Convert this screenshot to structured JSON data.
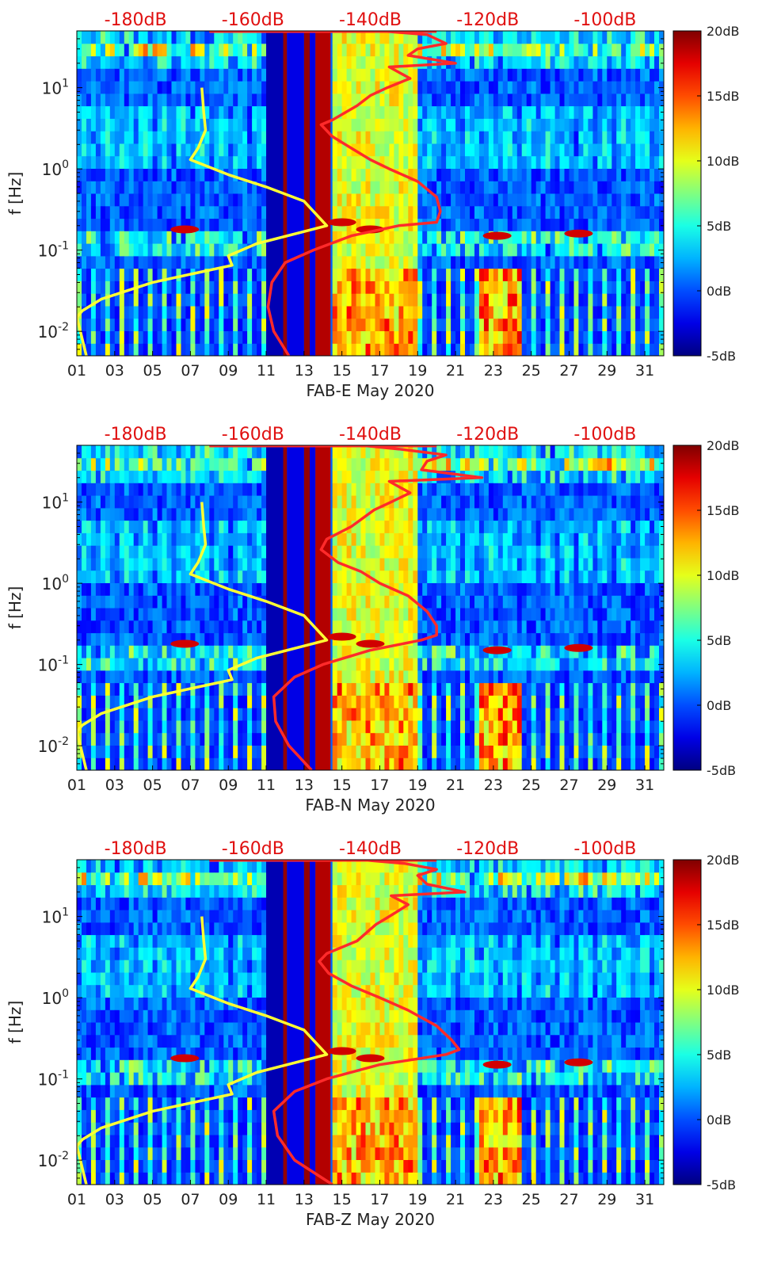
{
  "chart_data": [
    {
      "type": "heatmap",
      "xlabel": "FAB-E May 2020",
      "ylabel": "f [Hz]",
      "x_ticks": [
        "01",
        "03",
        "05",
        "07",
        "09",
        "11",
        "13",
        "15",
        "17",
        "19",
        "21",
        "23",
        "25",
        "27",
        "29",
        "31"
      ],
      "xlim": [
        1,
        32
      ],
      "ylim": [
        0.005,
        50
      ],
      "y_scale": "log",
      "y_ticks": [
        {
          "value": 0.01,
          "base": "10",
          "exp": "-2"
        },
        {
          "value": 0.1,
          "base": "10",
          "exp": "-1"
        },
        {
          "value": 1,
          "base": "10",
          "exp": "0"
        },
        {
          "value": 10,
          "base": "10",
          "exp": "1"
        }
      ],
      "top_axis_labels": [
        "-180dB",
        "-160dB",
        "-140dB",
        "-120dB",
        "-100dB"
      ],
      "top_axis_range_db": [
        -190,
        -90
      ],
      "colorbar": {
        "labels": [
          "-5dB",
          "0dB",
          "5dB",
          "10dB",
          "15dB",
          "20dB"
        ],
        "range": [
          -5,
          20
        ],
        "colormap": "jet"
      },
      "series": [
        {
          "color": "#ffff33",
          "x_units": "days",
          "points": [
            [
              7.6,
              10
            ],
            [
              7.7,
              5
            ],
            [
              7.8,
              3
            ],
            [
              7.4,
              1.8
            ],
            [
              7,
              1.3
            ],
            [
              9,
              0.85
            ],
            [
              11,
              0.6
            ],
            [
              13,
              0.4
            ],
            [
              14.2,
              0.2
            ],
            [
              10.5,
              0.12
            ],
            [
              9,
              0.085
            ],
            [
              9.2,
              0.065
            ],
            [
              5,
              0.04
            ],
            [
              2.3,
              0.025
            ],
            [
              1.3,
              0.018
            ],
            [
              1,
              0.015
            ],
            [
              1.5,
              0.005
            ]
          ]
        },
        {
          "color": "#ff2a2a",
          "x_units": "days",
          "points": [
            [
              12.2,
              0.005
            ],
            [
              11.4,
              0.01
            ],
            [
              11.1,
              0.02
            ],
            [
              11.3,
              0.04
            ],
            [
              12,
              0.07
            ],
            [
              13.5,
              0.1
            ],
            [
              15.5,
              0.15
            ],
            [
              18,
              0.2
            ],
            [
              20,
              0.22
            ],
            [
              20.2,
              0.3
            ],
            [
              20,
              0.45
            ],
            [
              19,
              0.7
            ],
            [
              17.5,
              1
            ],
            [
              16.5,
              1.3
            ],
            [
              15.5,
              1.8
            ],
            [
              14.5,
              2.5
            ],
            [
              13.9,
              3.5
            ],
            [
              14.5,
              4
            ],
            [
              15.8,
              6
            ],
            [
              16.5,
              8
            ],
            [
              17.4,
              10
            ],
            [
              18.6,
              13
            ],
            [
              17.5,
              18
            ],
            [
              21,
              20
            ],
            [
              18.5,
              25
            ],
            [
              19,
              30
            ],
            [
              20.5,
              35
            ],
            [
              19.5,
              45
            ],
            [
              17,
              50
            ]
          ]
        }
      ]
    },
    {
      "type": "heatmap",
      "xlabel": "FAB-N May 2020",
      "ylabel": "f [Hz]",
      "x_ticks": [
        "01",
        "03",
        "05",
        "07",
        "09",
        "11",
        "13",
        "15",
        "17",
        "19",
        "21",
        "23",
        "25",
        "27",
        "29",
        "31"
      ],
      "xlim": [
        1,
        32
      ],
      "ylim": [
        0.005,
        50
      ],
      "y_scale": "log",
      "y_ticks": [
        {
          "value": 0.01,
          "base": "10",
          "exp": "-2"
        },
        {
          "value": 0.1,
          "base": "10",
          "exp": "-1"
        },
        {
          "value": 1,
          "base": "10",
          "exp": "0"
        },
        {
          "value": 10,
          "base": "10",
          "exp": "1"
        }
      ],
      "top_axis_labels": [
        "-180dB",
        "-160dB",
        "-140dB",
        "-120dB",
        "-100dB"
      ],
      "top_axis_range_db": [
        -190,
        -90
      ],
      "colorbar": {
        "labels": [
          "-5dB",
          "0dB",
          "5dB",
          "10dB",
          "15dB",
          "20dB"
        ],
        "range": [
          -5,
          20
        ],
        "colormap": "jet"
      },
      "series": [
        {
          "color": "#ffff33",
          "x_units": "days",
          "points": [
            [
              7.6,
              10
            ],
            [
              7.7,
              5
            ],
            [
              7.8,
              3
            ],
            [
              7.4,
              1.8
            ],
            [
              7,
              1.3
            ],
            [
              9,
              0.85
            ],
            [
              11,
              0.6
            ],
            [
              13,
              0.4
            ],
            [
              14.2,
              0.2
            ],
            [
              10.5,
              0.12
            ],
            [
              9,
              0.085
            ],
            [
              9.2,
              0.065
            ],
            [
              5,
              0.04
            ],
            [
              2.3,
              0.025
            ],
            [
              1.3,
              0.018
            ],
            [
              1,
              0.015
            ],
            [
              1.5,
              0.005
            ]
          ]
        },
        {
          "color": "#ff2a2a",
          "x_units": "days",
          "points": [
            [
              13.4,
              0.005
            ],
            [
              12.2,
              0.01
            ],
            [
              11.5,
              0.02
            ],
            [
              11.4,
              0.04
            ],
            [
              12.5,
              0.07
            ],
            [
              14,
              0.1
            ],
            [
              16.5,
              0.15
            ],
            [
              19.2,
              0.2
            ],
            [
              20,
              0.23
            ],
            [
              20,
              0.3
            ],
            [
              19.5,
              0.45
            ],
            [
              18.5,
              0.7
            ],
            [
              17,
              1
            ],
            [
              16,
              1.4
            ],
            [
              14.8,
              1.8
            ],
            [
              13.9,
              2.6
            ],
            [
              14.2,
              3.5
            ],
            [
              15.5,
              5
            ],
            [
              16.7,
              8
            ],
            [
              17.6,
              10
            ],
            [
              18.6,
              13
            ],
            [
              17.5,
              18
            ],
            [
              22.4,
              20
            ],
            [
              19.2,
              25
            ],
            [
              19.5,
              32
            ],
            [
              20.5,
              38
            ],
            [
              18,
              45
            ],
            [
              16,
              50
            ]
          ]
        }
      ]
    },
    {
      "type": "heatmap",
      "xlabel": "FAB-Z May 2020",
      "ylabel": "f [Hz]",
      "x_ticks": [
        "01",
        "03",
        "05",
        "07",
        "09",
        "11",
        "13",
        "15",
        "17",
        "19",
        "21",
        "23",
        "25",
        "27",
        "29",
        "31"
      ],
      "xlim": [
        1,
        32
      ],
      "ylim": [
        0.005,
        50
      ],
      "y_scale": "log",
      "y_ticks": [
        {
          "value": 0.01,
          "base": "10",
          "exp": "-2"
        },
        {
          "value": 0.1,
          "base": "10",
          "exp": "-1"
        },
        {
          "value": 1,
          "base": "10",
          "exp": "0"
        },
        {
          "value": 10,
          "base": "10",
          "exp": "1"
        }
      ],
      "top_axis_labels": [
        "-180dB",
        "-160dB",
        "-140dB",
        "-120dB",
        "-100dB"
      ],
      "top_axis_range_db": [
        -190,
        -90
      ],
      "colorbar": {
        "labels": [
          "-5dB",
          "0dB",
          "5dB",
          "10dB",
          "15dB",
          "20dB"
        ],
        "range": [
          -5,
          20
        ],
        "colormap": "jet"
      },
      "series": [
        {
          "color": "#ffff33",
          "x_units": "days",
          "points": [
            [
              7.6,
              10
            ],
            [
              7.7,
              5
            ],
            [
              7.8,
              3
            ],
            [
              7.4,
              1.8
            ],
            [
              7,
              1.3
            ],
            [
              9,
              0.85
            ],
            [
              11,
              0.6
            ],
            [
              13,
              0.4
            ],
            [
              14.2,
              0.2
            ],
            [
              10.5,
              0.12
            ],
            [
              9,
              0.085
            ],
            [
              9.2,
              0.065
            ],
            [
              5,
              0.04
            ],
            [
              2.3,
              0.025
            ],
            [
              1.3,
              0.018
            ],
            [
              1,
              0.015
            ],
            [
              1.5,
              0.005
            ]
          ]
        },
        {
          "color": "#ff2a2a",
          "x_units": "days",
          "points": [
            [
              14.5,
              0.005
            ],
            [
              12.5,
              0.01
            ],
            [
              11.6,
              0.02
            ],
            [
              11.4,
              0.04
            ],
            [
              12.5,
              0.07
            ],
            [
              14.2,
              0.1
            ],
            [
              17,
              0.15
            ],
            [
              20.5,
              0.2
            ],
            [
              21.2,
              0.23
            ],
            [
              20.8,
              0.3
            ],
            [
              20,
              0.45
            ],
            [
              18.5,
              0.7
            ],
            [
              17,
              1
            ],
            [
              15.5,
              1.4
            ],
            [
              14.3,
              2
            ],
            [
              13.8,
              2.8
            ],
            [
              14.2,
              3.5
            ],
            [
              15.8,
              5
            ],
            [
              16.8,
              8
            ],
            [
              17.5,
              10
            ],
            [
              18.5,
              14
            ],
            [
              17.6,
              18
            ],
            [
              21.5,
              20
            ],
            [
              19.5,
              25
            ],
            [
              19,
              32
            ],
            [
              20,
              38
            ],
            [
              18.3,
              45
            ],
            [
              16,
              50
            ]
          ]
        }
      ]
    }
  ]
}
